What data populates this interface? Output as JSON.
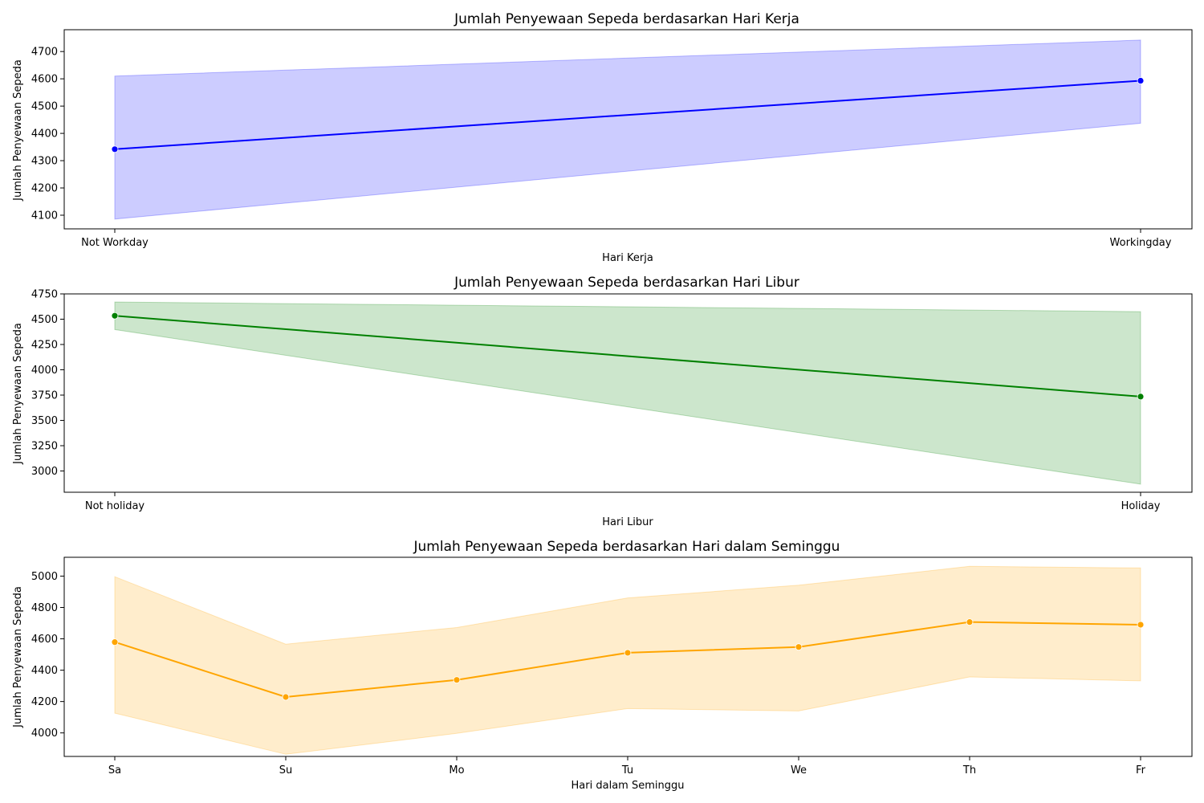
{
  "chart_data": [
    {
      "type": "line",
      "title": "Jumlah Penyewaan Sepeda berdasarkan Hari Kerja",
      "xlabel": "Hari Kerja",
      "ylabel": "Jumlah Penyewaan Sepeda",
      "categories": [
        "Not Workday",
        "Workingday"
      ],
      "series": [
        {
          "color": "#0000ff",
          "values": [
            4342,
            4593
          ],
          "ci_low": [
            4086,
            4437
          ],
          "ci_high": [
            4610,
            4742
          ]
        }
      ],
      "ylim": [
        4050,
        4780
      ],
      "yticks": [
        4100,
        4200,
        4300,
        4400,
        4500,
        4600,
        4700
      ],
      "grid": false,
      "marker": "circle"
    },
    {
      "type": "line",
      "title": "Jumlah Penyewaan Sepeda berdasarkan Hari Libur",
      "xlabel": "Hari Libur",
      "ylabel": "Jumlah Penyewaan Sepeda",
      "categories": [
        "Not holiday",
        "Holiday"
      ],
      "series": [
        {
          "color": "#008000",
          "values": [
            4534,
            3735
          ],
          "ci_low": [
            4398,
            2870
          ],
          "ci_high": [
            4670,
            4575
          ]
        }
      ],
      "ylim": [
        2790,
        4750
      ],
      "yticks": [
        3000,
        3250,
        3500,
        3750,
        4000,
        4250,
        4500,
        4750
      ],
      "grid": false,
      "marker": "circle"
    },
    {
      "type": "line",
      "title": "Jumlah Penyewaan Sepeda berdasarkan Hari dalam Seminggu",
      "xlabel": "Hari dalam Seminggu",
      "ylabel": "Jumlah Penyewaan Sepeda",
      "categories": [
        "Sa",
        "Su",
        "Mo",
        "Tu",
        "We",
        "Th",
        "Fr"
      ],
      "series": [
        {
          "color": "#ffa500",
          "values": [
            4579,
            4229,
            4338,
            4511,
            4548,
            4707,
            4690
          ],
          "ci_low": [
            4126,
            3864,
            3997,
            4155,
            4140,
            4357,
            4332
          ],
          "ci_high": [
            4996,
            4566,
            4672,
            4861,
            4942,
            5062,
            5052
          ]
        }
      ],
      "ylim": [
        3850,
        5120
      ],
      "yticks": [
        4000,
        4200,
        4400,
        4600,
        4800,
        5000
      ],
      "grid": false,
      "marker": "circle"
    }
  ]
}
